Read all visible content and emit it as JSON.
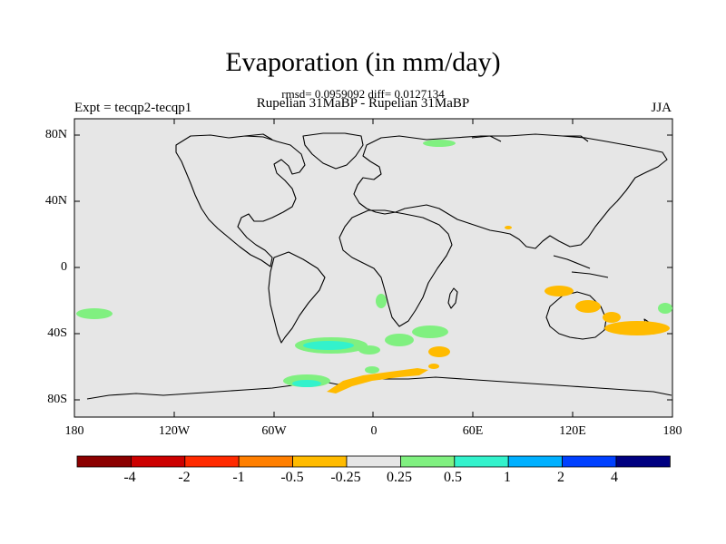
{
  "title": "Evaporation (in mm/day)",
  "stats_line": "rmsd= 0.0959092 diff= 0.0127134",
  "subtitle": "Rupelian  31MaBP - Rupelian  31MaBP",
  "left_label": "Expt = tecqp2-tecqp1",
  "right_label": "JJA",
  "y_axis_ticks": [
    "80N",
    "40N",
    "0",
    "40S",
    "80S"
  ],
  "x_axis_ticks": [
    "180",
    "120W",
    "60W",
    "0",
    "60E",
    "120E",
    "180"
  ],
  "colorbar": {
    "labels": [
      "-4",
      "-2",
      "-1",
      "-0.5",
      "-0.25",
      "0.25",
      "0.5",
      "1",
      "2",
      "4"
    ],
    "colors": [
      "#8b0000",
      "#cc0000",
      "#ff2a00",
      "#ff7f00",
      "#ffbb00",
      "#e6e6e6",
      "#80f080",
      "#33f2cc",
      "#00b0ff",
      "#0040ff",
      "#000080"
    ]
  },
  "map": {
    "background_color": "#e6e6e6",
    "projection": "cylindrical equidistant",
    "lon_range": [
      -180,
      180
    ],
    "lat_range": [
      -90,
      90
    ]
  }
}
